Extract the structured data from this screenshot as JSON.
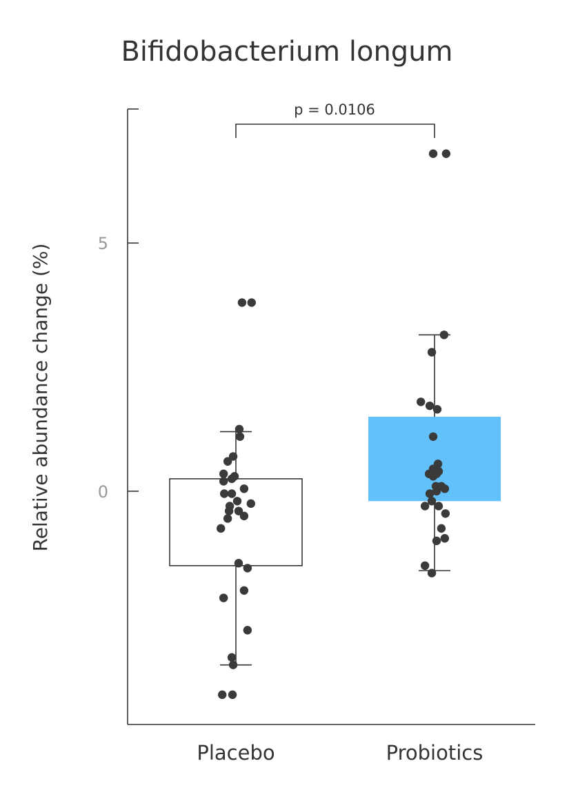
{
  "chart_data": {
    "type": "box",
    "title": "Bifidobacterium longum",
    "ylabel": "Relative abundance change (%)",
    "xlabel": "",
    "categories": [
      "Placebo",
      "Probiotics"
    ],
    "ylim": [
      -4.7,
      7.7
    ],
    "yticks": [
      0,
      5
    ],
    "annotation": "p = 0.0106",
    "colors": {
      "placebo_box_fill": "#ffffff",
      "probiotics_box_fill": "#62c0fb",
      "points": "#3a3a3a",
      "axis": "#333333",
      "tick_label": "#999999",
      "text": "#333333"
    },
    "boxes": [
      {
        "name": "Placebo",
        "q1": -1.5,
        "median": null,
        "q3": 0.25,
        "whisker_low": -3.5,
        "whisker_high": 1.2
      },
      {
        "name": "Probiotics",
        "q1": -0.2,
        "median": null,
        "q3": 1.5,
        "whisker_low": -1.6,
        "whisker_high": 3.15
      }
    ],
    "series": [
      {
        "name": "Placebo",
        "points": [
          [
            -0.2,
            -4.1
          ],
          [
            -0.05,
            -4.1
          ],
          [
            0.09,
            3.8
          ],
          [
            0.23,
            3.8
          ],
          [
            0.05,
            1.25
          ],
          [
            0.06,
            1.1
          ],
          [
            -0.04,
            0.7
          ],
          [
            -0.12,
            0.6
          ],
          [
            -0.18,
            0.35
          ],
          [
            -0.02,
            0.3
          ],
          [
            -0.18,
            0.2
          ],
          [
            -0.06,
            0.25
          ],
          [
            0.12,
            0.05
          ],
          [
            -0.17,
            -0.05
          ],
          [
            -0.06,
            -0.05
          ],
          [
            -0.09,
            -0.3
          ],
          [
            0.02,
            -0.2
          ],
          [
            0.22,
            -0.25
          ],
          [
            -0.1,
            -0.4
          ],
          [
            0.04,
            -0.4
          ],
          [
            -0.12,
            -0.55
          ],
          [
            0.12,
            -0.5
          ],
          [
            -0.22,
            -0.75
          ],
          [
            0.04,
            -1.45
          ],
          [
            0.17,
            -1.55
          ],
          [
            -0.18,
            -2.15
          ],
          [
            0.12,
            -2.0
          ],
          [
            0.17,
            -2.8
          ],
          [
            -0.06,
            -3.35
          ],
          [
            -0.04,
            -3.5
          ]
        ]
      },
      {
        "name": "Probiotics",
        "points": [
          [
            -0.02,
            6.8
          ],
          [
            0.17,
            6.8
          ],
          [
            0.14,
            3.15
          ],
          [
            -0.04,
            2.8
          ],
          [
            -0.2,
            1.8
          ],
          [
            -0.07,
            1.72
          ],
          [
            0.04,
            1.65
          ],
          [
            -0.02,
            1.1
          ],
          [
            0.05,
            0.55
          ],
          [
            -0.02,
            0.45
          ],
          [
            0.06,
            0.4
          ],
          [
            -0.08,
            0.35
          ],
          [
            0.03,
            0.35
          ],
          [
            -0.02,
            0.3
          ],
          [
            0.1,
            0.1
          ],
          [
            0.02,
            0.1
          ],
          [
            0.15,
            0.05
          ],
          [
            0.03,
            0.0
          ],
          [
            -0.07,
            -0.05
          ],
          [
            -0.04,
            -0.2
          ],
          [
            -0.14,
            -0.3
          ],
          [
            0.06,
            -0.3
          ],
          [
            0.16,
            -0.45
          ],
          [
            0.1,
            -0.75
          ],
          [
            0.15,
            -0.95
          ],
          [
            0.03,
            -1.0
          ],
          [
            -0.14,
            -1.5
          ],
          [
            -0.04,
            -1.65
          ]
        ]
      }
    ]
  }
}
